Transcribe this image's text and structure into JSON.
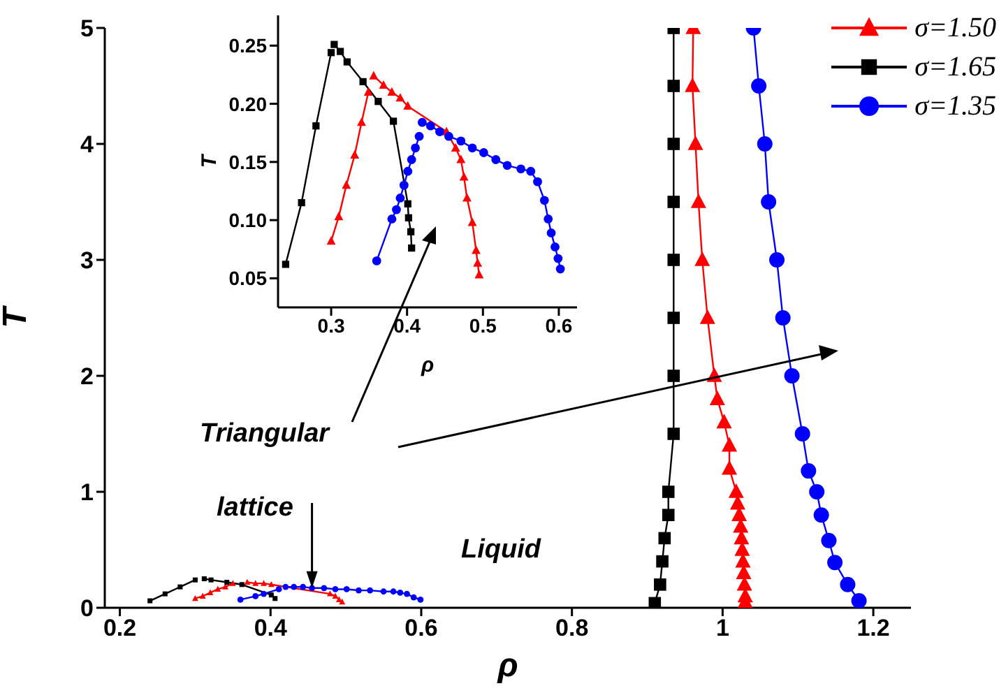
{
  "chart_data": [
    {
      "type": "line",
      "xlabel": "ρ",
      "ylabel": "T",
      "xlim": [
        0.18,
        1.25
      ],
      "ylim": [
        0,
        5
      ],
      "xticks": [
        0.2,
        0.4,
        0.6,
        0.8,
        1.0,
        1.2
      ],
      "yticks": [
        0,
        1,
        2,
        3,
        4,
        5
      ],
      "legend": "top right",
      "line_style": "solid",
      "annotations": [
        "Triangular",
        {
          "text": "lattice",
          "x": 0.455,
          "y": 0.17
        },
        "Liquid"
      ],
      "series": [
        {
          "name": "σ=1.50",
          "color": "#ff0000",
          "marker": "triangle",
          "x": [
            0.961,
            0.96,
            0.964,
            0.968,
            0.973,
            0.98,
            0.989,
            0.993,
            1.002,
            1.009,
            1.009,
            1.018,
            1.02,
            1.022,
            1.024,
            1.025,
            1.026,
            1.027,
            1.028,
            1.029,
            1.03,
            1.03
          ],
          "values": [
            5.0,
            4.5,
            4.0,
            3.5,
            3.0,
            2.5,
            2.0,
            1.8,
            1.6,
            1.4,
            1.2,
            1.0,
            0.9,
            0.8,
            0.7,
            0.6,
            0.5,
            0.4,
            0.3,
            0.2,
            0.1,
            0.05
          ]
        },
        {
          "name": "σ=1.65",
          "color": "#000000",
          "marker": "square",
          "x": [
            0.935,
            0.935,
            0.935,
            0.935,
            0.935,
            0.935,
            0.935,
            0.935,
            0.928,
            0.928,
            0.923,
            0.92,
            0.917,
            0.91
          ],
          "values": [
            5.0,
            4.5,
            4.0,
            3.5,
            3.0,
            2.5,
            2.0,
            1.5,
            1.0,
            0.8,
            0.6,
            0.4,
            0.2,
            0.04
          ]
        },
        {
          "name": "σ=1.35",
          "color": "#0000ff",
          "marker": "circle",
          "x": [
            1.041,
            1.048,
            1.056,
            1.061,
            1.072,
            1.08,
            1.092,
            1.106,
            1.114,
            1.125,
            1.131,
            1.141,
            1.149,
            1.166,
            1.181
          ],
          "values": [
            5.0,
            4.5,
            4.0,
            3.5,
            3.0,
            2.5,
            2.0,
            1.5,
            1.18,
            1.0,
            0.8,
            0.58,
            0.39,
            0.2,
            0.06
          ]
        },
        {
          "color": "#ff0000",
          "marker": "triangle",
          "x": [
            0.3,
            0.31,
            0.32,
            0.33,
            0.34,
            0.35
          ],
          "values": [
            0.08,
            0.1,
            0.13,
            0.16,
            0.18,
            0.21
          ]
        },
        {
          "color": "#ff0000",
          "marker": "triangle",
          "x": [
            0.369,
            0.38,
            0.391,
            0.401,
            0.479,
            0.486,
            0.491,
            0.495
          ],
          "values": [
            0.22,
            0.21,
            0.21,
            0.2,
            0.12,
            0.1,
            0.07,
            0.05
          ]
        },
        {
          "color": "#000000",
          "marker": "square",
          "x": [
            0.24,
            0.26,
            0.28,
            0.3
          ],
          "values": [
            0.06,
            0.12,
            0.18,
            0.24
          ]
        },
        {
          "color": "#000000",
          "marker": "square",
          "x": [
            0.312,
            0.321,
            0.342,
            0.362,
            0.401,
            0.406
          ],
          "values": [
            0.25,
            0.24,
            0.22,
            0.2,
            0.11,
            0.08
          ]
        },
        {
          "color": "#0000ff",
          "marker": "circle",
          "x": [
            0.36,
            0.38,
            0.391,
            0.411
          ],
          "values": [
            0.07,
            0.1,
            0.12,
            0.16
          ]
        },
        {
          "color": "#0000ff",
          "marker": "circle",
          "x": [
            0.42,
            0.431,
            0.443,
            0.455,
            0.471,
            0.486,
            0.501,
            0.517,
            0.532,
            0.55,
            0.563,
            0.572,
            0.581,
            0.59,
            0.599
          ],
          "values": [
            0.18,
            0.18,
            0.18,
            0.17,
            0.17,
            0.16,
            0.16,
            0.15,
            0.15,
            0.14,
            0.14,
            0.13,
            0.12,
            0.09,
            0.07
          ]
        }
      ]
    },
    {
      "type": "line",
      "xlabel": "ρ",
      "ylabel": "T",
      "xlim": [
        0.23,
        0.624
      ],
      "ylim": [
        0.025,
        0.276
      ],
      "xticks": [
        0.3,
        0.4,
        0.5,
        0.6
      ],
      "yticks": [
        {
          "value": 0.05,
          "label": "0.05"
        },
        {
          "value": 0.1,
          "label": "0.10"
        },
        {
          "value": 0.15,
          "label": "0.15"
        },
        {
          "value": 0.2,
          "label": "0.20"
        },
        {
          "value": 0.25,
          "label": "0.25"
        }
      ],
      "line_style": "solid",
      "series": [
        {
          "color": "#ff0000",
          "marker": "triangle",
          "x": [
            0.3,
            0.31,
            0.32,
            0.331,
            0.34,
            0.349
          ],
          "values": [
            0.082,
            0.103,
            0.13,
            0.156,
            0.184,
            0.21
          ]
        },
        {
          "color": "#ff0000",
          "marker": "triangle",
          "x": [
            0.356,
            0.369,
            0.38,
            0.391,
            0.401,
            0.452,
            0.464,
            0.471,
            0.475,
            0.479,
            0.486,
            0.491,
            0.493,
            0.495
          ],
          "values": [
            0.224,
            0.216,
            0.21,
            0.205,
            0.198,
            0.176,
            0.162,
            0.152,
            0.137,
            0.119,
            0.098,
            0.074,
            0.063,
            0.053
          ]
        },
        {
          "color": "#000000",
          "marker": "square",
          "x": [
            0.24,
            0.261,
            0.28,
            0.3
          ],
          "values": [
            0.062,
            0.115,
            0.181,
            0.244
          ]
        },
        {
          "color": "#000000",
          "marker": "square",
          "x": [
            0.304,
            0.312,
            0.321,
            0.342,
            0.362,
            0.382,
            0.401,
            0.402,
            0.405,
            0.406
          ],
          "values": [
            0.251,
            0.245,
            0.236,
            0.219,
            0.202,
            0.185,
            0.114,
            0.102,
            0.09,
            0.076
          ]
        },
        {
          "color": "#0000ff",
          "marker": "circle",
          "x": [
            0.36,
            0.38,
            0.386,
            0.391,
            0.396,
            0.401,
            0.406,
            0.411,
            0.416
          ],
          "values": [
            0.065,
            0.101,
            0.109,
            0.119,
            0.13,
            0.142,
            0.152,
            0.162,
            0.172
          ]
        },
        {
          "color": "#0000ff",
          "marker": "circle",
          "x": [
            0.42,
            0.431,
            0.443,
            0.455,
            0.471,
            0.486,
            0.501,
            0.517,
            0.532,
            0.55,
            0.563,
            0.572,
            0.581,
            0.586,
            0.59,
            0.595,
            0.599,
            0.602
          ],
          "values": [
            0.184,
            0.181,
            0.176,
            0.172,
            0.168,
            0.162,
            0.158,
            0.152,
            0.147,
            0.144,
            0.142,
            0.133,
            0.117,
            0.101,
            0.089,
            0.077,
            0.067,
            0.058
          ]
        }
      ]
    }
  ]
}
